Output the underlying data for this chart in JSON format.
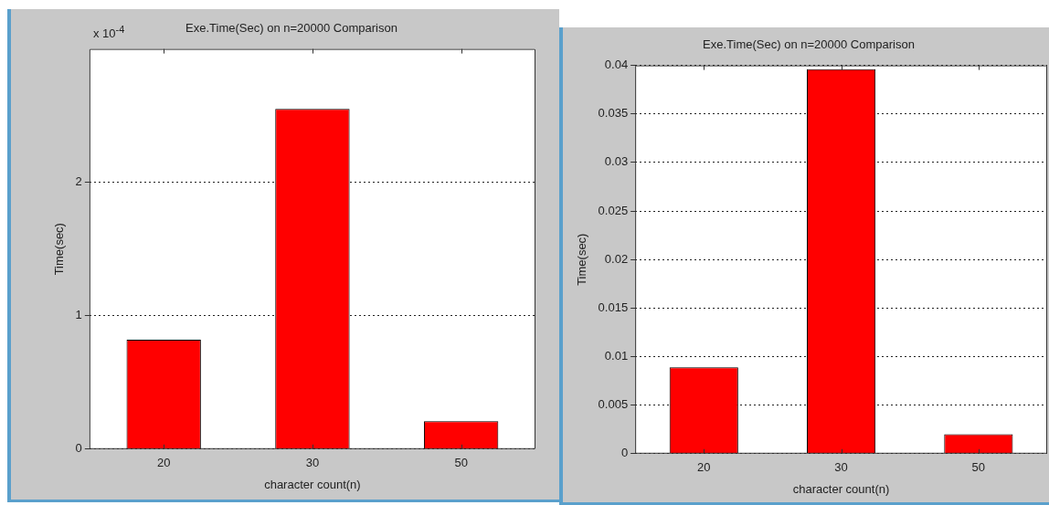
{
  "chart_data": [
    {
      "type": "bar",
      "title": "Exe.Time(Sec) on n=20000 Comparison",
      "xlabel": "character count(n)",
      "ylabel": "Time(sec)",
      "categories": [
        "20",
        "30",
        "50"
      ],
      "values": [
        0.82,
        2.55,
        0.21
      ],
      "color": "#ff0000",
      "ylim": [
        0,
        3
      ],
      "yticks": [
        0,
        1,
        2
      ],
      "grid": "y",
      "line_style": "dotted",
      "legend": false,
      "annotations": [
        "x 10$^{-4}$"
      ]
    },
    {
      "type": "bar",
      "title": "Exe.Time(Sec) on n=20000 Comparison",
      "xlabel": "character count(n)",
      "ylabel": "Time(sec)",
      "categories": [
        "20",
        "30",
        "50"
      ],
      "values": [
        0.0089,
        0.0396,
        0.002
      ],
      "color": "#ff0000",
      "ylim": [
        0,
        0.04
      ],
      "yticks": [
        0,
        0.005,
        0.01,
        0.015,
        0.02,
        0.025,
        0.03,
        0.035,
        0.04
      ],
      "grid": "y",
      "line_style": "dotted",
      "legend": false
    }
  ]
}
